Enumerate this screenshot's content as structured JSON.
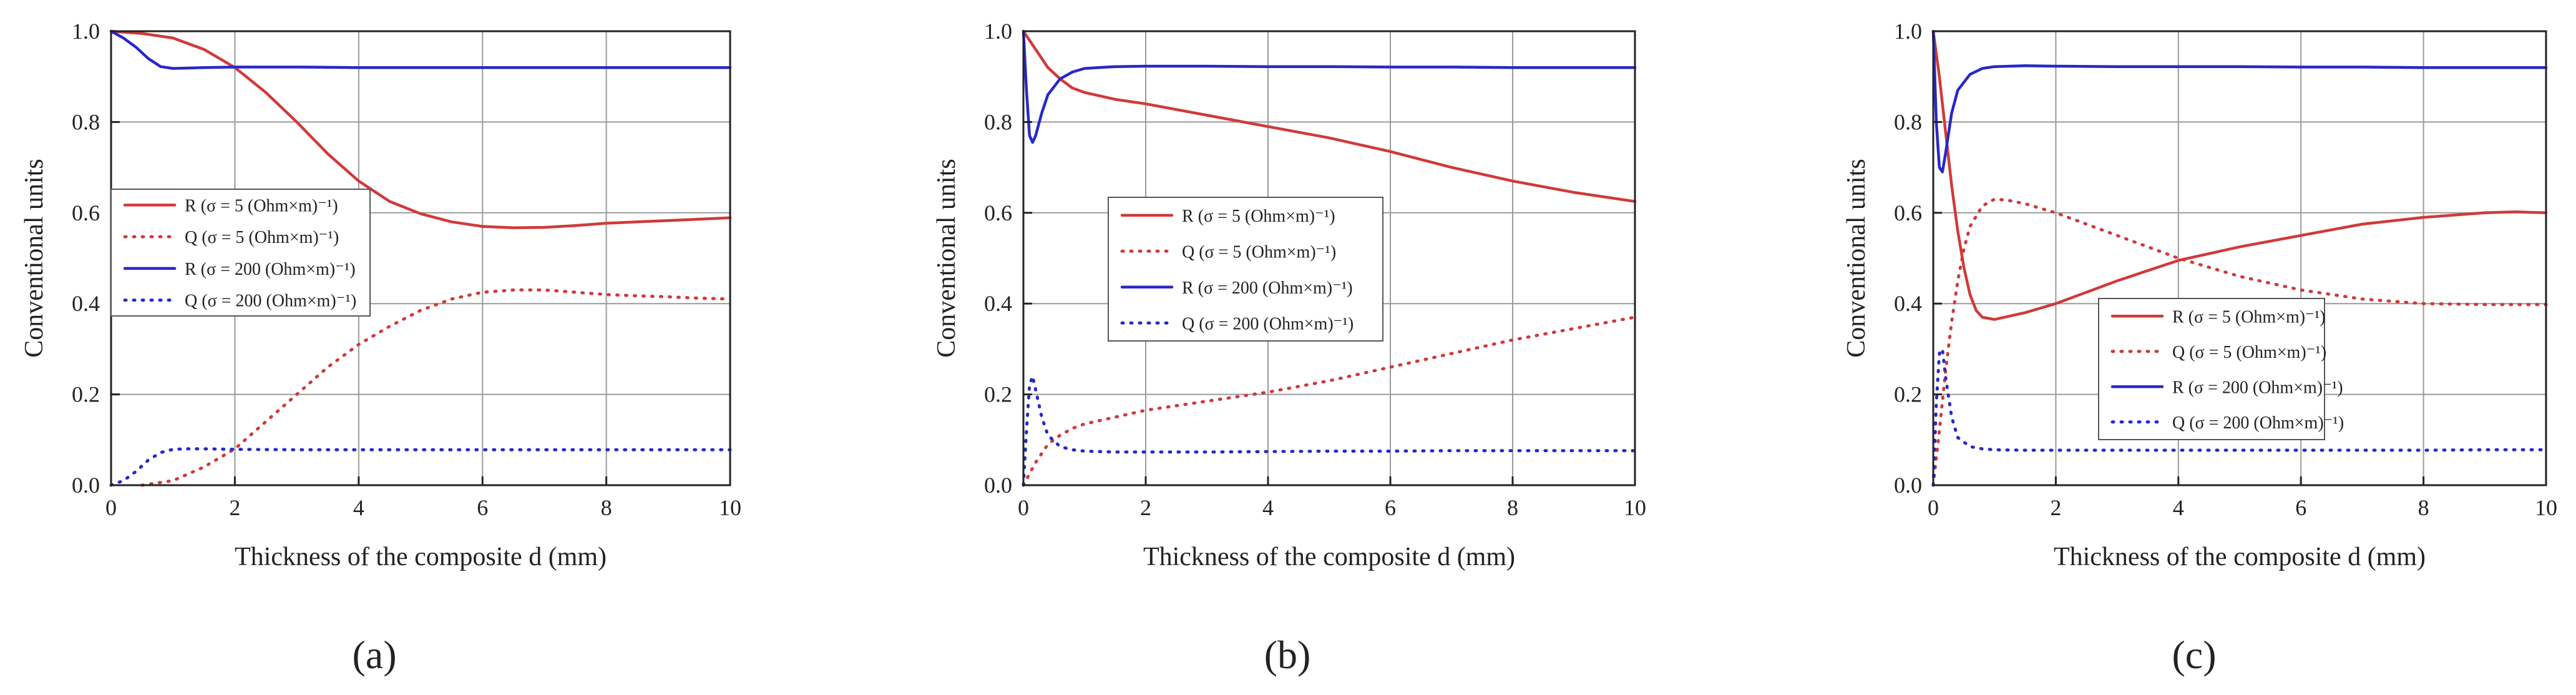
{
  "figure": {
    "panel_labels": [
      "(a)",
      "(b)",
      "(c)"
    ]
  },
  "series_style": [
    {
      "color": "#d03a3a",
      "dash": "solid"
    },
    {
      "color": "#d03a3a",
      "dash": "dotted"
    },
    {
      "color": "#2828c8",
      "dash": "solid"
    },
    {
      "color": "#2828c8",
      "dash": "dotted"
    }
  ],
  "chart_data": [
    {
      "type": "line",
      "panel": "(a)",
      "title": "",
      "xlabel": "Thickness of the composite d (mm)",
      "ylabel": "Conventional units",
      "xlim": [
        0,
        10
      ],
      "ylim": [
        0,
        1.0
      ],
      "xticks": [
        "0",
        "2",
        "4",
        "6",
        "8",
        "10"
      ],
      "yticks": [
        "0.0",
        "0.2",
        "0.4",
        "0.6",
        "0.8",
        "1.0"
      ],
      "grid": true,
      "legend_position": "left-middle",
      "series": [
        {
          "name": "R (σ = 5 (Ohm×m)⁻¹)",
          "symbol": "R",
          "sigma": "5",
          "x": [
            0,
            0.5,
            1,
            1.5,
            2,
            2.5,
            3,
            3.5,
            4,
            4.5,
            5,
            5.5,
            6,
            6.5,
            7,
            7.5,
            8,
            8.5,
            9,
            9.5,
            10
          ],
          "y": [
            1.0,
            0.995,
            0.985,
            0.96,
            0.92,
            0.865,
            0.8,
            0.73,
            0.67,
            0.625,
            0.598,
            0.58,
            0.57,
            0.567,
            0.568,
            0.572,
            0.577,
            0.58,
            0.583,
            0.586,
            0.589
          ]
        },
        {
          "name": "Q (σ = 5 (Ohm×m)⁻¹)",
          "symbol": "Q",
          "sigma": "5",
          "x": [
            0.5,
            1,
            1.5,
            2,
            2.5,
            3,
            3.5,
            4,
            4.5,
            5,
            5.5,
            6,
            6.5,
            7,
            7.5,
            8,
            8.5,
            9,
            9.5,
            10
          ],
          "y": [
            0.0,
            0.01,
            0.04,
            0.08,
            0.14,
            0.2,
            0.26,
            0.31,
            0.35,
            0.385,
            0.41,
            0.425,
            0.43,
            0.43,
            0.425,
            0.42,
            0.417,
            0.415,
            0.412,
            0.41
          ]
        },
        {
          "name": "R (σ = 200 (Ohm×m)⁻¹)",
          "symbol": "R",
          "sigma": "200",
          "x": [
            0,
            0.2,
            0.4,
            0.6,
            0.8,
            1.0,
            1.5,
            2,
            3,
            4,
            5,
            6,
            7,
            8,
            9,
            10
          ],
          "y": [
            1.0,
            0.985,
            0.965,
            0.94,
            0.922,
            0.918,
            0.92,
            0.921,
            0.921,
            0.92,
            0.92,
            0.92,
            0.92,
            0.92,
            0.92,
            0.92
          ]
        },
        {
          "name": "Q (σ = 200 (Ohm×m)⁻¹)",
          "symbol": "Q",
          "sigma": "200",
          "x": [
            0,
            0.2,
            0.4,
            0.6,
            0.8,
            1.0,
            1.2,
            1.5,
            2,
            3,
            4,
            5,
            6,
            7,
            8,
            9,
            10
          ],
          "y": [
            0.0,
            0.01,
            0.03,
            0.055,
            0.072,
            0.079,
            0.08,
            0.08,
            0.079,
            0.078,
            0.078,
            0.078,
            0.078,
            0.078,
            0.078,
            0.078,
            0.078
          ]
        }
      ]
    },
    {
      "type": "line",
      "panel": "(b)",
      "title": "",
      "xlabel": "Thickness of the composite d (mm)",
      "ylabel": "Conventional units",
      "xlim": [
        0,
        10
      ],
      "ylim": [
        0,
        1.0
      ],
      "xticks": [
        "0",
        "2",
        "4",
        "6",
        "8",
        "10"
      ],
      "yticks": [
        "0.0",
        "0.2",
        "0.4",
        "0.6",
        "0.8",
        "1.0"
      ],
      "grid": true,
      "legend_position": "middle",
      "series": [
        {
          "name": "R (σ = 5 (Ohm×m)⁻¹)",
          "symbol": "R",
          "sigma": "5",
          "x": [
            0,
            0.2,
            0.4,
            0.6,
            0.8,
            1,
            1.5,
            2,
            3,
            4,
            5,
            6,
            7,
            8,
            9,
            10
          ],
          "y": [
            1.0,
            0.96,
            0.92,
            0.895,
            0.875,
            0.865,
            0.85,
            0.84,
            0.815,
            0.79,
            0.765,
            0.735,
            0.7,
            0.67,
            0.645,
            0.625
          ]
        },
        {
          "name": "Q (σ = 5 (Ohm×m)⁻¹)",
          "symbol": "Q",
          "sigma": "5",
          "x": [
            0,
            0.2,
            0.4,
            0.6,
            0.8,
            1,
            1.5,
            2,
            3,
            4,
            5,
            6,
            7,
            8,
            9,
            10
          ],
          "y": [
            0.0,
            0.05,
            0.09,
            0.11,
            0.125,
            0.135,
            0.15,
            0.165,
            0.185,
            0.205,
            0.23,
            0.26,
            0.29,
            0.32,
            0.345,
            0.37
          ]
        },
        {
          "name": "R (σ = 200 (Ohm×m)⁻¹)",
          "symbol": "R",
          "sigma": "200",
          "x": [
            0,
            0.05,
            0.1,
            0.15,
            0.2,
            0.3,
            0.4,
            0.6,
            0.8,
            1,
            1.5,
            2,
            3,
            4,
            5,
            6,
            7,
            8,
            9,
            10
          ],
          "y": [
            1.0,
            0.87,
            0.77,
            0.755,
            0.77,
            0.82,
            0.86,
            0.895,
            0.91,
            0.918,
            0.922,
            0.923,
            0.923,
            0.922,
            0.922,
            0.921,
            0.921,
            0.92,
            0.92,
            0.92
          ]
        },
        {
          "name": "Q (σ = 200 (Ohm×m)⁻¹)",
          "symbol": "Q",
          "sigma": "200",
          "x": [
            0,
            0.05,
            0.1,
            0.15,
            0.2,
            0.3,
            0.4,
            0.6,
            0.8,
            1,
            1.5,
            2,
            3,
            4,
            5,
            6,
            7,
            8,
            9,
            10
          ],
          "y": [
            0.0,
            0.12,
            0.22,
            0.24,
            0.21,
            0.15,
            0.11,
            0.085,
            0.078,
            0.075,
            0.073,
            0.073,
            0.073,
            0.074,
            0.075,
            0.075,
            0.076,
            0.076,
            0.076,
            0.076
          ]
        }
      ]
    },
    {
      "type": "line",
      "panel": "(c)",
      "title": "",
      "xlabel": "Thickness of the composite d (mm)",
      "ylabel": "Conventional units",
      "xlim": [
        0,
        10
      ],
      "ylim": [
        0,
        1.0
      ],
      "xticks": [
        "0",
        "2",
        "4",
        "6",
        "8",
        "10"
      ],
      "yticks": [
        "0.0",
        "0.2",
        "0.4",
        "0.6",
        "0.8",
        "1.0"
      ],
      "grid": true,
      "legend_position": "bottom-center",
      "series": [
        {
          "name": "R (σ = 5 (Ohm×m)⁻¹)",
          "symbol": "R",
          "sigma": "5",
          "x": [
            0,
            0.1,
            0.2,
            0.3,
            0.4,
            0.5,
            0.6,
            0.7,
            0.8,
            1.0,
            1.5,
            2,
            3,
            4,
            5,
            6,
            7,
            8,
            9,
            9.5,
            10
          ],
          "y": [
            1.0,
            0.9,
            0.78,
            0.66,
            0.56,
            0.48,
            0.42,
            0.385,
            0.37,
            0.365,
            0.38,
            0.4,
            0.45,
            0.495,
            0.525,
            0.55,
            0.575,
            0.59,
            0.6,
            0.602,
            0.6
          ]
        },
        {
          "name": "Q (σ = 5 (Ohm×m)⁻¹)",
          "symbol": "Q",
          "sigma": "5",
          "x": [
            0,
            0.1,
            0.2,
            0.3,
            0.4,
            0.5,
            0.6,
            0.8,
            1.0,
            1.2,
            1.5,
            2,
            3,
            4,
            5,
            6,
            7,
            8,
            9,
            10
          ],
          "y": [
            0.0,
            0.12,
            0.25,
            0.36,
            0.45,
            0.52,
            0.57,
            0.615,
            0.63,
            0.628,
            0.62,
            0.6,
            0.55,
            0.5,
            0.46,
            0.43,
            0.41,
            0.4,
            0.398,
            0.398
          ]
        },
        {
          "name": "R (σ = 200 (Ohm×m)⁻¹)",
          "symbol": "R",
          "sigma": "200",
          "x": [
            0,
            0.05,
            0.1,
            0.15,
            0.2,
            0.3,
            0.4,
            0.6,
            0.8,
            1,
            1.5,
            2,
            3,
            4,
            5,
            6,
            7,
            8,
            9,
            10
          ],
          "y": [
            1.0,
            0.8,
            0.7,
            0.69,
            0.73,
            0.82,
            0.87,
            0.905,
            0.918,
            0.922,
            0.924,
            0.923,
            0.922,
            0.922,
            0.922,
            0.921,
            0.921,
            0.92,
            0.92,
            0.92
          ]
        },
        {
          "name": "Q (σ = 200 (Ohm×m)⁻¹)",
          "symbol": "Q",
          "sigma": "200",
          "x": [
            0,
            0.05,
            0.1,
            0.15,
            0.2,
            0.3,
            0.4,
            0.6,
            0.8,
            1,
            1.5,
            2,
            3,
            4,
            5,
            6,
            7,
            8,
            9,
            10
          ],
          "y": [
            0.0,
            0.18,
            0.29,
            0.3,
            0.24,
            0.15,
            0.105,
            0.085,
            0.08,
            0.078,
            0.077,
            0.077,
            0.077,
            0.077,
            0.077,
            0.077,
            0.077,
            0.077,
            0.078,
            0.078
          ]
        }
      ]
    }
  ]
}
